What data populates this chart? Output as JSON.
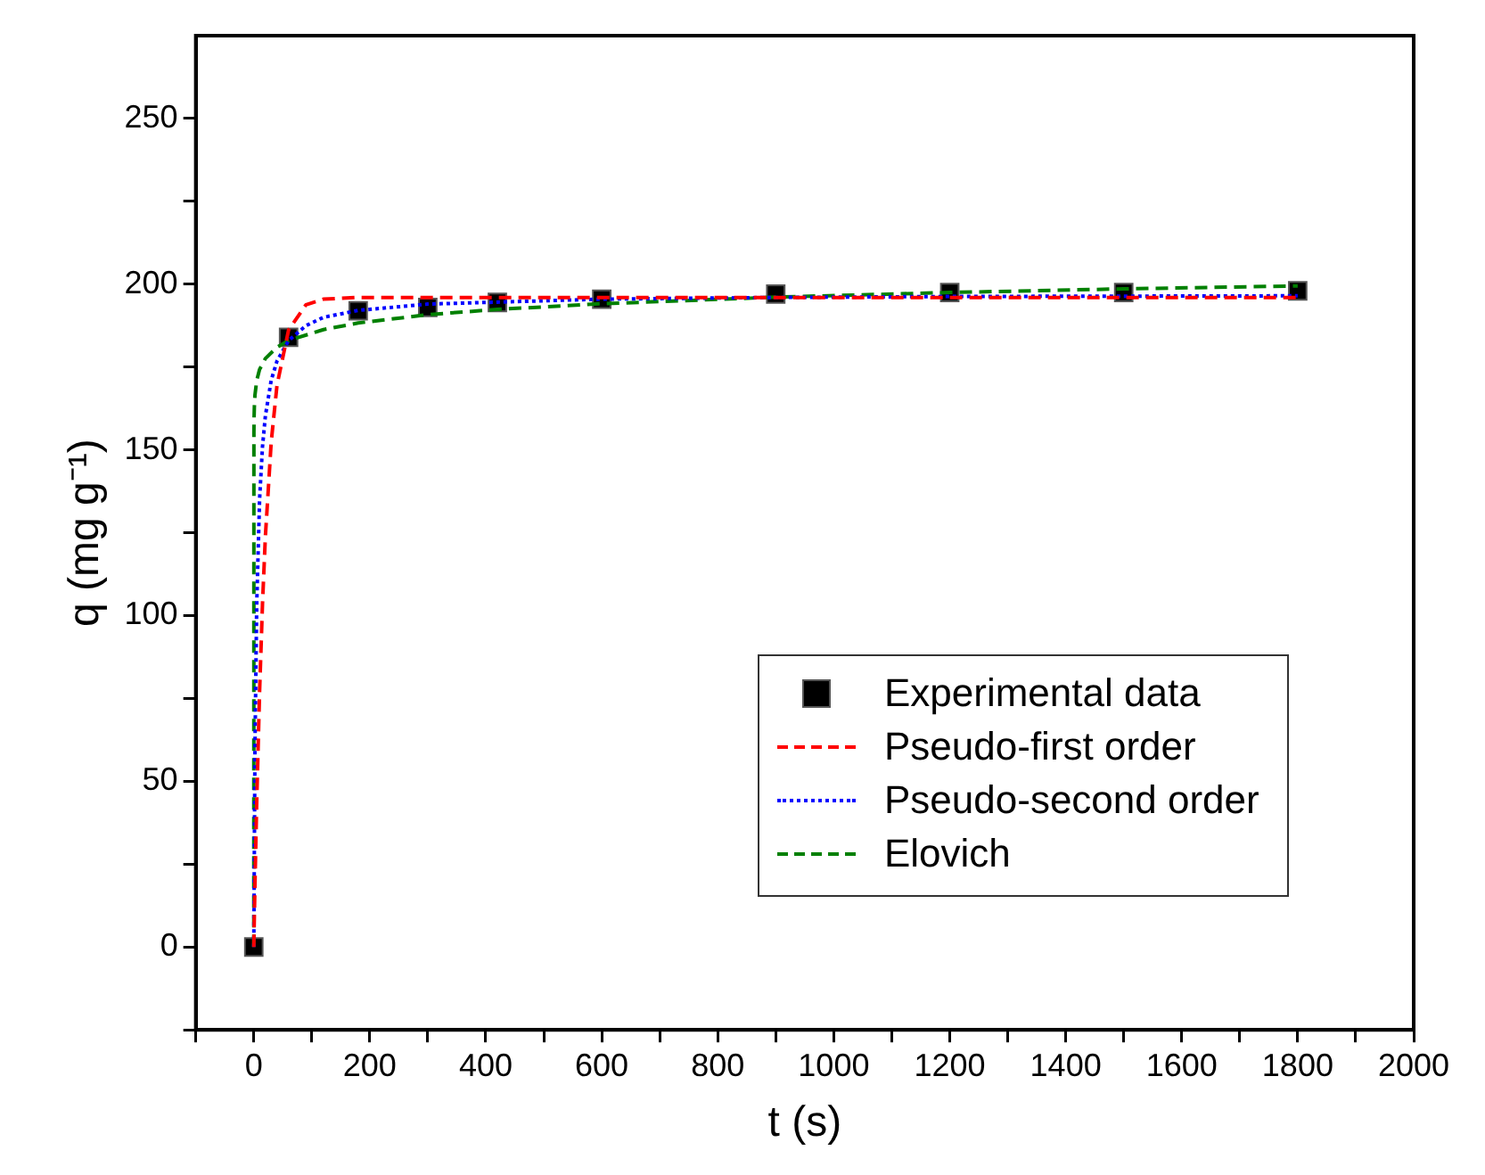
{
  "chart_data": {
    "type": "line",
    "xlabel": "t (s)",
    "ylabel": "q (mg g⁻¹)",
    "xlim": [
      -100,
      2000
    ],
    "ylim": [
      -25,
      275
    ],
    "xticks": [
      {
        "value": -100,
        "label": null
      },
      0,
      {
        "value": 100,
        "label": null
      },
      200,
      {
        "value": 300,
        "label": null
      },
      400,
      {
        "value": 500,
        "label": null
      },
      600,
      {
        "value": 700,
        "label": null
      },
      800,
      {
        "value": 900,
        "label": null
      },
      1000,
      {
        "value": 1100,
        "label": null
      },
      1200,
      {
        "value": 1300,
        "label": null
      },
      1400,
      {
        "value": 1500,
        "label": null
      },
      1600,
      {
        "value": 1700,
        "label": null
      },
      1800,
      {
        "value": 1900,
        "label": null
      },
      2000
    ],
    "yticks": [
      {
        "value": -25,
        "label": null
      },
      0,
      {
        "value": 25,
        "label": null
      },
      50,
      {
        "value": 75,
        "label": null
      },
      100,
      {
        "value": 125,
        "label": null
      },
      150,
      {
        "value": 175,
        "label": null
      },
      200,
      {
        "value": 225,
        "label": null
      },
      250
    ],
    "legend": "bottom right",
    "series": [
      {
        "name": "Experimental data",
        "type": "scatter",
        "marker": "square",
        "color": "#000000",
        "x": [
          0,
          60,
          180,
          300,
          420,
          600,
          900,
          1200,
          1500,
          1800
        ],
        "values": [
          0,
          184,
          192,
          193,
          194.5,
          195.5,
          197,
          197.5,
          197.5,
          198
        ]
      },
      {
        "name": "Pseudo-first order",
        "line_style": "dashed",
        "color": "#ff0000",
        "x": [
          0,
          2,
          5,
          10,
          15,
          20,
          30,
          40,
          60,
          90,
          120,
          180,
          300,
          600,
          900,
          1200,
          1500,
          1800
        ],
        "values": [
          0,
          18.7,
          43.4,
          77.1,
          103.5,
          123.9,
          152.3,
          169.5,
          186.2,
          193.8,
          195.5,
          196,
          196,
          196,
          196,
          196,
          196,
          196
        ]
      },
      {
        "name": "Pseudo-second order",
        "line_style": "dotted",
        "color": "#0000ff",
        "x": [
          0,
          2,
          5,
          10,
          15,
          20,
          30,
          40,
          60,
          90,
          120,
          180,
          300,
          600,
          900,
          1200,
          1500,
          1800
        ],
        "values": [
          0,
          59.9,
          102.9,
          135.2,
          151,
          160.3,
          171,
          176.8,
          183,
          187.5,
          190,
          192.1,
          194,
          195.5,
          196,
          196.3,
          196.4,
          196.5
        ]
      },
      {
        "name": "Elovich",
        "line_style": "dashed",
        "color": "#008000",
        "x": [
          0,
          0.2,
          0.5,
          1,
          2,
          5,
          10,
          20,
          40,
          60,
          120,
          180,
          300,
          420,
          600,
          900,
          1200,
          1500,
          1800
        ],
        "values": [
          0,
          155.3,
          159.7,
          163.1,
          166.5,
          170.9,
          174.3,
          177.6,
          181,
          183,
          186.3,
          188.3,
          190.8,
          192.4,
          194.1,
          196.1,
          197.5,
          198.6,
          199.5
        ]
      }
    ]
  }
}
